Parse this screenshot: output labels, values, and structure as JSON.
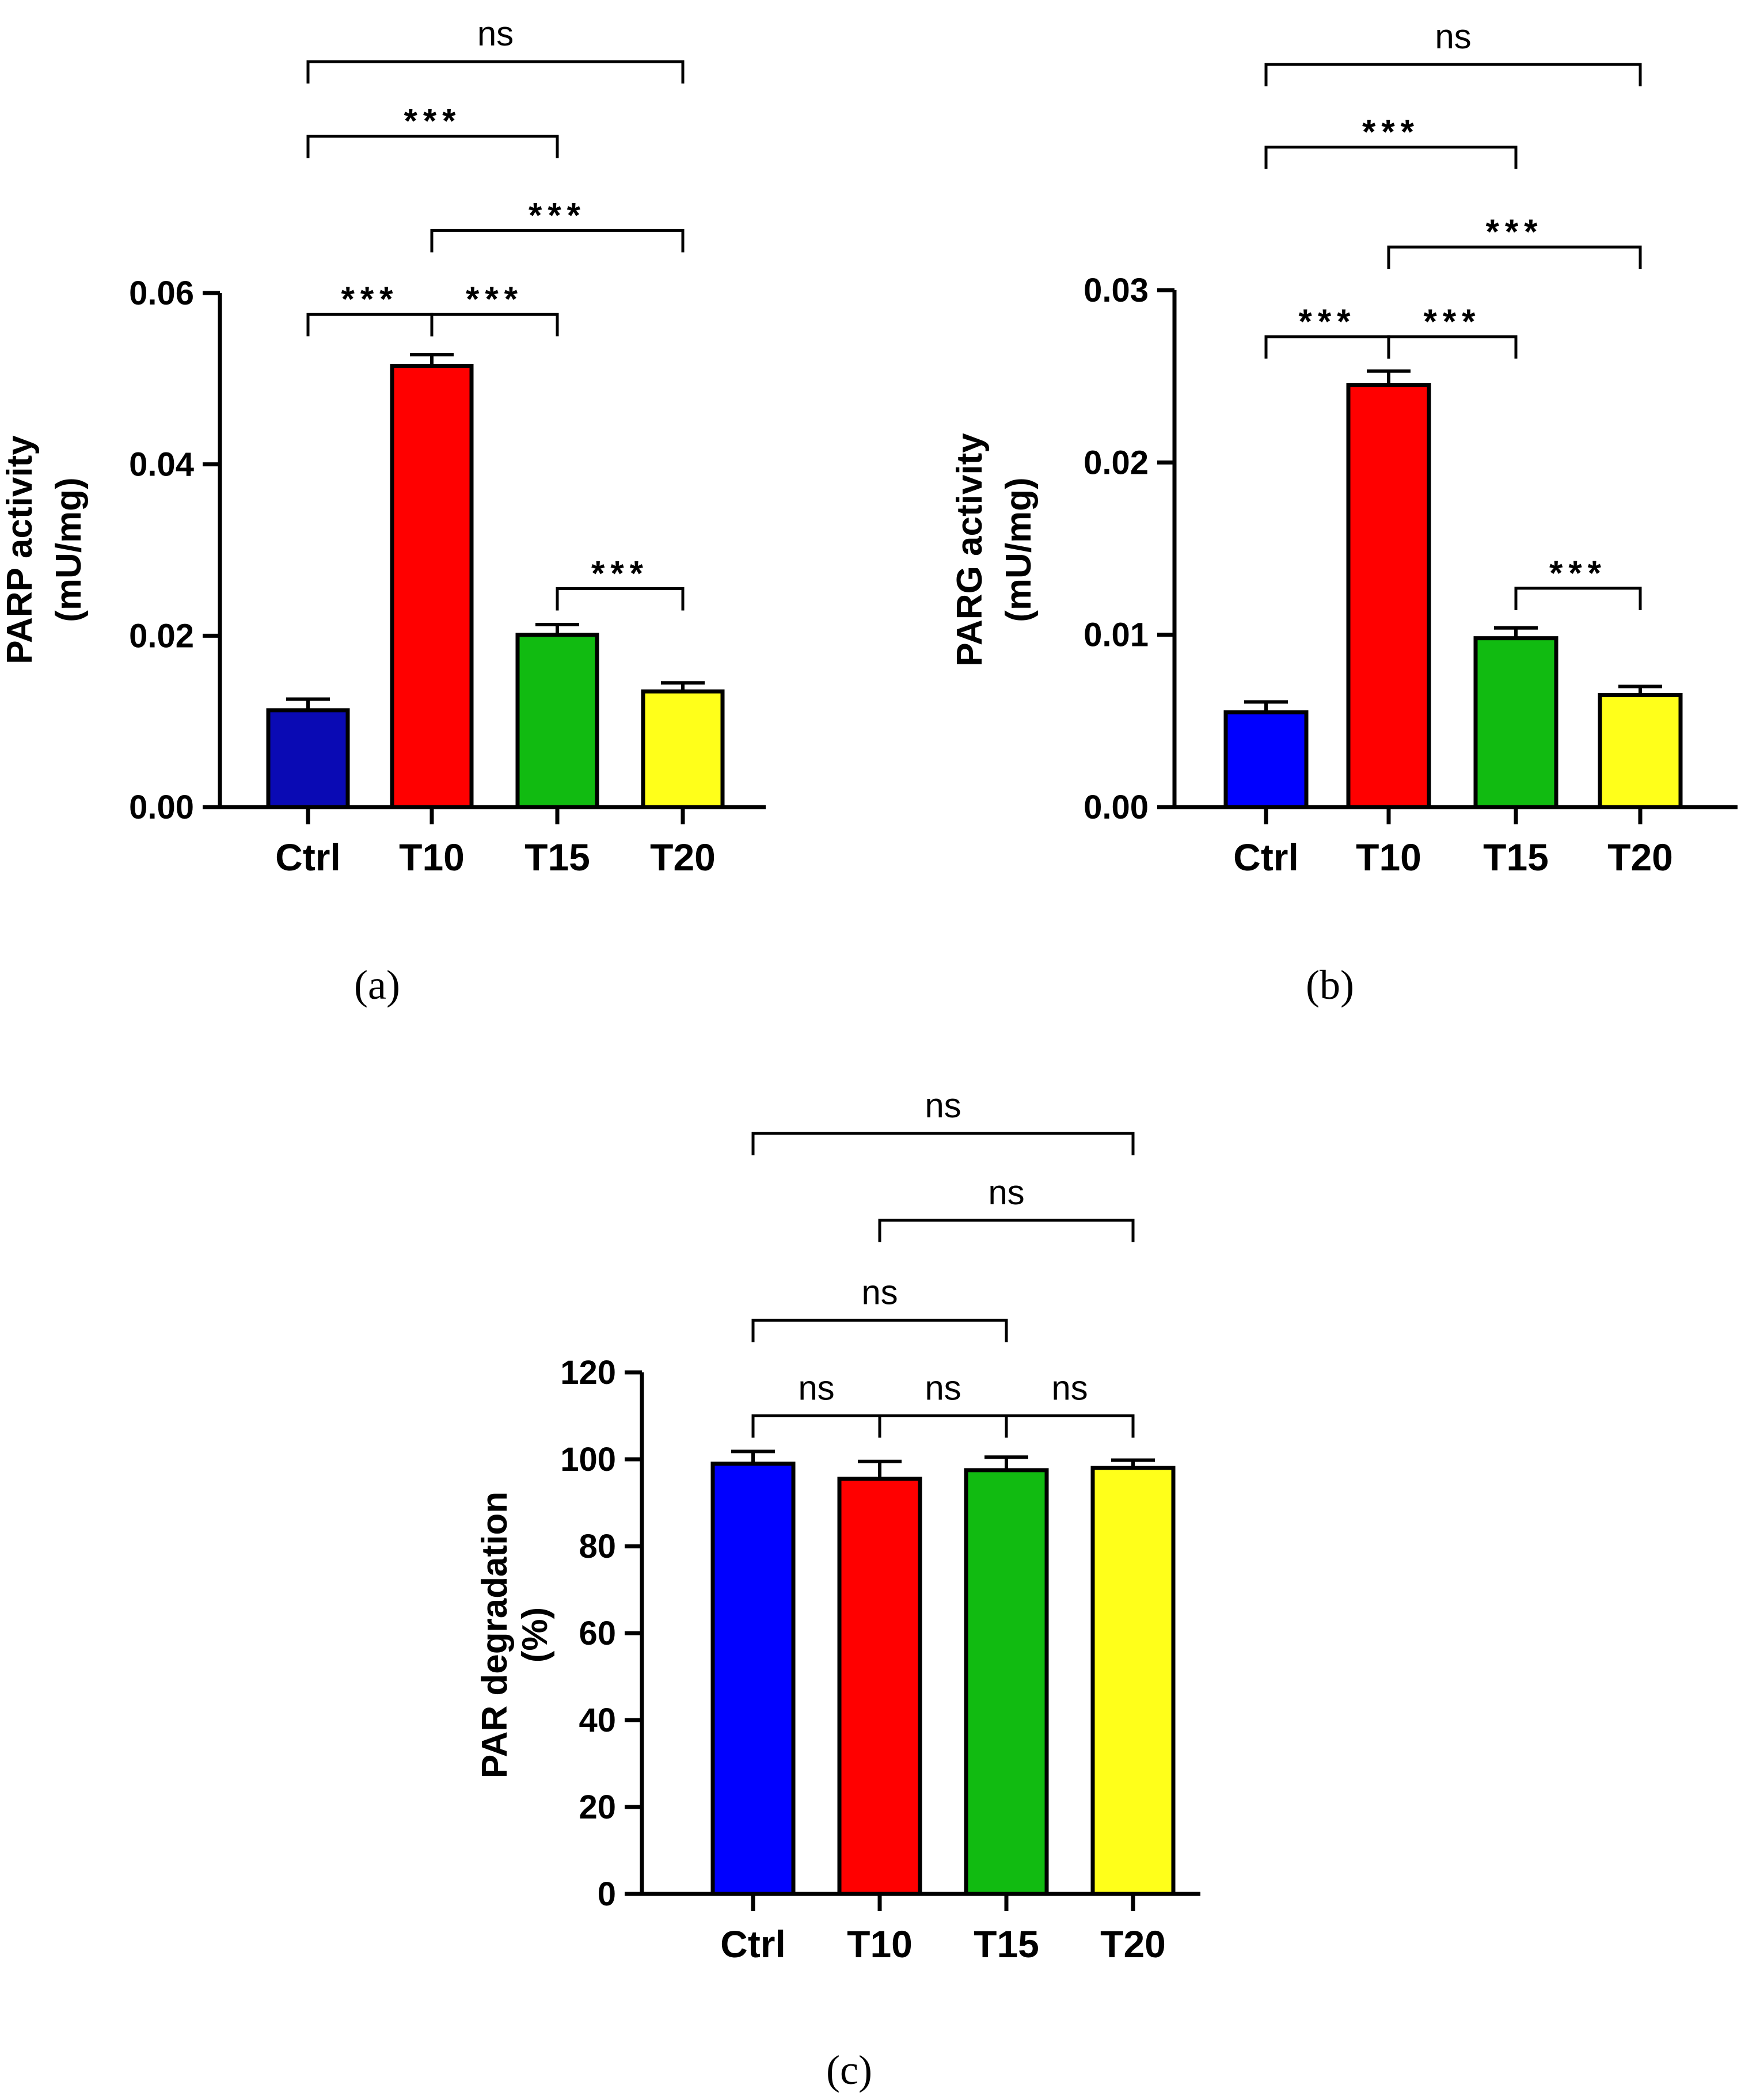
{
  "figure": {
    "panels": [
      "(a)",
      "(b)",
      "(c)"
    ]
  },
  "chart_data": [
    {
      "type": "bar",
      "panel_label": "(a)",
      "categories": [
        "Ctrl",
        "T10",
        "T15",
        "T20"
      ],
      "values": [
        0.0113,
        0.0515,
        0.0201,
        0.0135
      ],
      "errors": [
        0.0013,
        0.0013,
        0.0012,
        0.001
      ],
      "colors": [
        "#0a0ab4",
        "#ff0000",
        "#11bb11",
        "#ffff1a"
      ],
      "ylabel": [
        "PARP activity",
        "(mU/mg)"
      ],
      "ylim": [
        0,
        0.06
      ],
      "yticks": [
        0,
        0.02,
        0.04,
        0.06
      ],
      "ytick_labels": [
        "0.00",
        "0.02",
        "0.04",
        "0.06"
      ],
      "comparisons": [
        {
          "from": 0,
          "to": 1,
          "label": "***",
          "level": 0.0575
        },
        {
          "from": 1,
          "to": 2,
          "label": "***",
          "level": 0.0575
        },
        {
          "from": 2,
          "to": 3,
          "label": "***",
          "level": 0.0255
        },
        {
          "from": 1,
          "to": 3,
          "label": "***",
          "level": 0.0673
        },
        {
          "from": 0,
          "to": 2,
          "label": "***",
          "level": 0.0783
        },
        {
          "from": 0,
          "to": 3,
          "label": "ns",
          "level": 0.087
        }
      ]
    },
    {
      "type": "bar",
      "panel_label": "(b)",
      "categories": [
        "Ctrl",
        "T10",
        "T15",
        "T20"
      ],
      "values": [
        0.0055,
        0.0245,
        0.0098,
        0.0065
      ],
      "errors": [
        0.0006,
        0.0008,
        0.0006,
        0.0005
      ],
      "colors": [
        "#0000ff",
        "#ff0000",
        "#11bb11",
        "#ffff1a"
      ],
      "ylabel": [
        "PARG activity",
        "(mU/mg)"
      ],
      "ylim": [
        0,
        0.03
      ],
      "yticks": [
        0,
        0.01,
        0.02,
        0.03
      ],
      "ytick_labels": [
        "0.00",
        "0.01",
        "0.02",
        "0.03"
      ],
      "comparisons": [
        {
          "from": 0,
          "to": 1,
          "label": "***",
          "level": 0.0273
        },
        {
          "from": 1,
          "to": 2,
          "label": "***",
          "level": 0.0273
        },
        {
          "from": 2,
          "to": 3,
          "label": "***",
          "level": 0.0127
        },
        {
          "from": 1,
          "to": 3,
          "label": "***",
          "level": 0.0325
        },
        {
          "from": 0,
          "to": 2,
          "label": "***",
          "level": 0.0383
        },
        {
          "from": 0,
          "to": 3,
          "label": "ns",
          "level": 0.0431
        }
      ]
    },
    {
      "type": "bar",
      "panel_label": "(c)",
      "categories": [
        "Ctrl",
        "T10",
        "T15",
        "T20"
      ],
      "values": [
        99,
        95.5,
        97.5,
        98
      ],
      "errors": [
        2.8,
        4.0,
        3.0,
        1.8
      ],
      "colors": [
        "#0000ff",
        "#ff0000",
        "#11bb11",
        "#ffff1a"
      ],
      "ylabel": [
        "PAR degradation",
        "(%)"
      ],
      "ylim": [
        0,
        120
      ],
      "yticks": [
        0,
        20,
        40,
        60,
        80,
        100,
        120
      ],
      "ytick_labels": [
        "0",
        "20",
        "40",
        "60",
        "80",
        "100",
        "120"
      ],
      "comparisons": [
        {
          "from": 0,
          "to": 1,
          "label": "ns",
          "level": 110
        },
        {
          "from": 1,
          "to": 2,
          "label": "ns",
          "level": 110
        },
        {
          "from": 2,
          "to": 3,
          "label": "ns",
          "level": 110
        },
        {
          "from": 0,
          "to": 2,
          "label": "ns",
          "level": 132
        },
        {
          "from": 1,
          "to": 3,
          "label": "ns",
          "level": 155
        },
        {
          "from": 0,
          "to": 3,
          "label": "ns",
          "level": 175
        }
      ]
    }
  ]
}
